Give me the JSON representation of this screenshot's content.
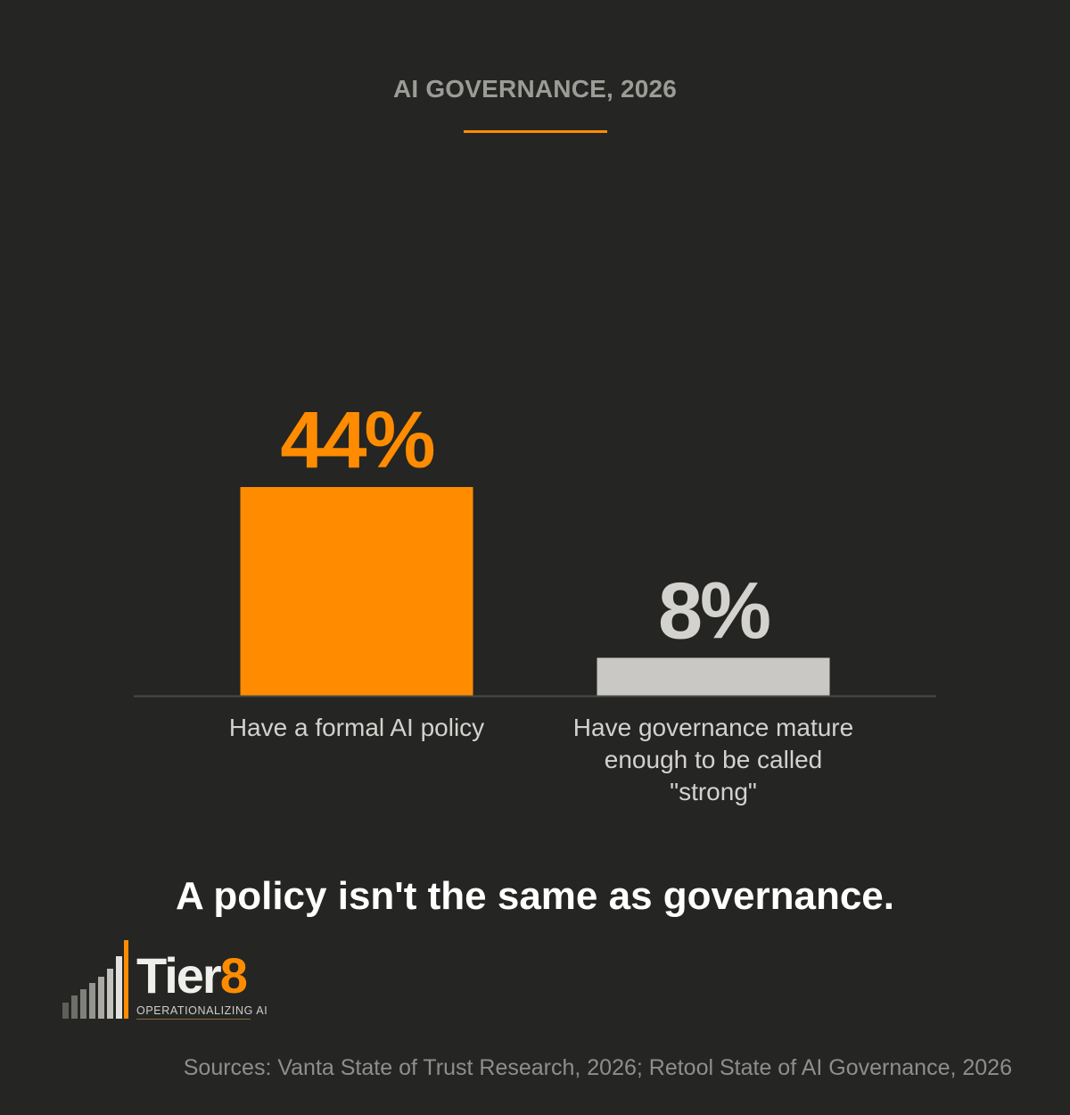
{
  "header": {
    "title": "AI GOVERNANCE, 2026"
  },
  "chart_data": {
    "type": "bar",
    "categories": [
      "Have a formal AI policy",
      "Have governance mature enough to be called \"strong\""
    ],
    "values": [
      44,
      8
    ],
    "value_labels": [
      "44%",
      "8%"
    ],
    "unit": "%",
    "colors": [
      "#ff8c00",
      "#c9c8c4"
    ],
    "label_colors": [
      "#ff8c00",
      "#d3d2cf"
    ],
    "ylim": [
      0,
      100
    ],
    "grid": false,
    "legend": "none"
  },
  "tagline": "A policy isn't the same as governance.",
  "logo": {
    "word_main": "Tier",
    "word_accent": "8",
    "tagline": "OPERATIONALIZING AI"
  },
  "footer": {
    "sources": "Sources: Vanta State of Trust Research, 2026; Retool State of AI Governance, 2026"
  },
  "colors": {
    "background": "#252524",
    "accent": "#ff8c00",
    "neutral_bar": "#c9c8c4"
  }
}
